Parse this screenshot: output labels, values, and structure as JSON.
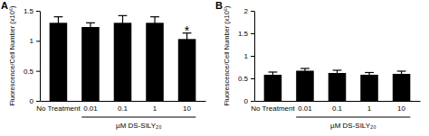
{
  "chart_data": [
    {
      "type": "bar",
      "panel_label": "A",
      "y_label": "Fluorescence/Cell Number (x10⁶)",
      "categories": [
        "No Treatment",
        "0.01",
        "0.1",
        "1",
        "10"
      ],
      "values": [
        1.3,
        1.23,
        1.3,
        1.3,
        1.03
      ],
      "errors": [
        0.1,
        0.07,
        0.12,
        0.1,
        0.1
      ],
      "color": "#000000",
      "group_label": "µM DS-SILY₂₀",
      "annotations": [
        {
          "text": "*",
          "category": "10"
        }
      ],
      "ylim": [
        0,
        1.5
      ],
      "yticks": [
        0,
        0.5,
        1,
        1.5
      ],
      "grid": false
    },
    {
      "type": "bar",
      "panel_label": "B",
      "y_label": "Fluorescence/Cell Number (x10⁶)",
      "categories": [
        "No Treatment",
        "0.01",
        "0.1",
        "1",
        "10"
      ],
      "values": [
        0.58,
        0.67,
        0.62,
        0.58,
        0.6
      ],
      "errors": [
        0.06,
        0.05,
        0.06,
        0.05,
        0.06
      ],
      "color": "#000000",
      "group_label": "µM DS-SILY₂₀",
      "ylim": [
        0,
        2
      ],
      "yticks": [
        0,
        0.5,
        1,
        1.5,
        2
      ],
      "grid": false
    }
  ]
}
